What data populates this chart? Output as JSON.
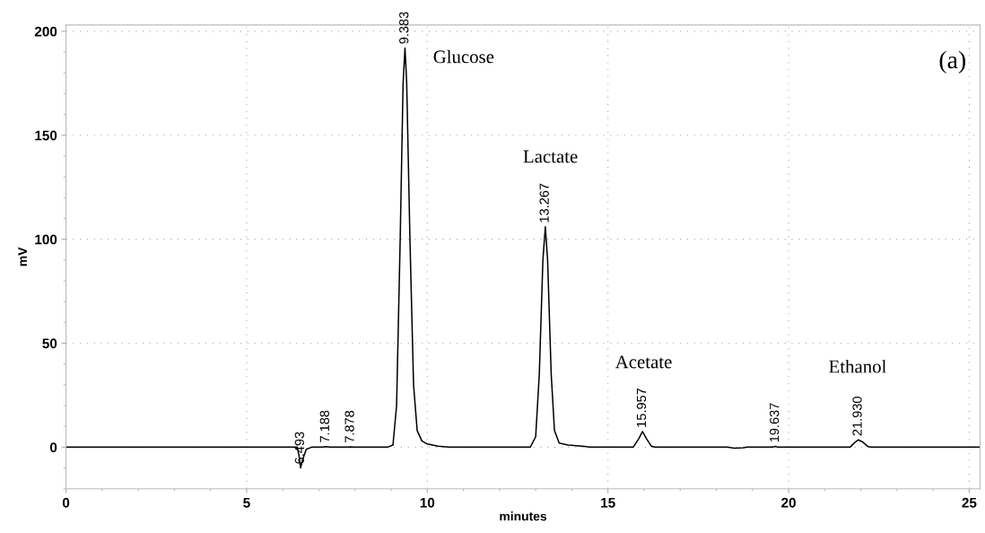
{
  "chart_data": {
    "type": "line",
    "xlabel": "minutes",
    "ylabel": "mV",
    "xlim": [
      0,
      25.3
    ],
    "ylim": [
      -20,
      203
    ],
    "xticks": [
      0,
      5,
      10,
      15,
      20,
      25
    ],
    "yticks": [
      0,
      50,
      100,
      150,
      200
    ],
    "grid": true,
    "series": [
      {
        "color": "#000000",
        "x": [
          0,
          6.4,
          6.45,
          6.493,
          6.55,
          6.65,
          6.8,
          7.1,
          7.188,
          7.3,
          7.8,
          7.878,
          7.95,
          8.9,
          9.05,
          9.15,
          9.25,
          9.33,
          9.383,
          9.43,
          9.52,
          9.62,
          9.72,
          9.85,
          10.0,
          10.3,
          10.6,
          12.85,
          13.0,
          13.1,
          13.2,
          13.267,
          13.33,
          13.43,
          13.52,
          13.65,
          13.9,
          14.3,
          14.5,
          15.7,
          15.85,
          15.957,
          16.07,
          16.2,
          16.3,
          18.3,
          18.5,
          18.75,
          18.85,
          19.55,
          19.637,
          19.7,
          21.7,
          21.85,
          21.93,
          22.05,
          22.2,
          22.3,
          25.3
        ],
        "values": [
          0,
          0,
          -4,
          -10,
          -6,
          -1,
          0,
          0,
          0.3,
          0,
          0,
          0.2,
          0,
          0,
          1,
          20,
          100,
          175,
          192,
          175,
          100,
          30,
          8,
          3,
          1.5,
          0.5,
          0,
          0,
          5,
          35,
          90,
          106,
          90,
          35,
          8,
          2,
          1,
          0.5,
          0,
          0,
          4,
          7.5,
          4,
          0.5,
          0,
          0,
          -0.5,
          -0.3,
          0,
          0,
          0.4,
          0,
          0,
          2.5,
          3.5,
          2.5,
          0.3,
          0,
          0
        ]
      }
    ],
    "annotations": [
      {
        "text": "6.493",
        "x": 6.493,
        "y": -10
      },
      {
        "text": "7.188",
        "x": 7.188,
        "y": 0.3
      },
      {
        "text": "7.878",
        "x": 7.878,
        "y": 0.2
      },
      {
        "text": "9.383",
        "x": 9.383,
        "y": 192
      },
      {
        "text": "13.267",
        "x": 13.267,
        "y": 106
      },
      {
        "text": "15.957",
        "x": 15.957,
        "y": 7.5
      },
      {
        "text": "19.637",
        "x": 19.637,
        "y": 0.4
      },
      {
        "text": "21.930",
        "x": 21.93,
        "y": 3.5
      },
      "Glucose",
      "Lactate",
      "Acetate",
      "Ethanol",
      "(a)"
    ]
  }
}
